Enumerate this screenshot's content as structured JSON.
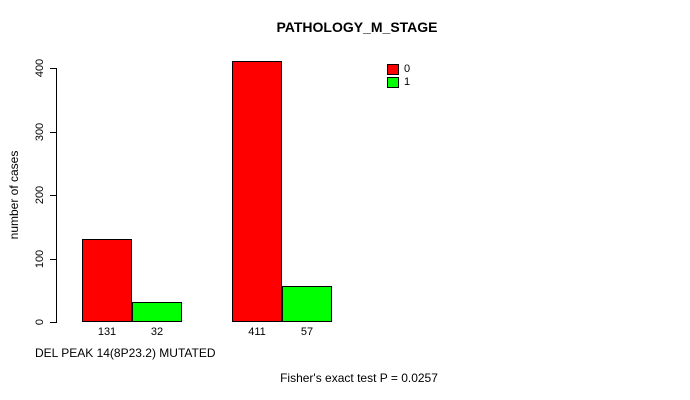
{
  "chart_data": {
    "type": "bar",
    "title": "PATHOLOGY_M_STAGE",
    "ylabel": "number of cases",
    "xlabel": "DEL PEAK 14(8P23.2) MUTATED",
    "annotation": "Fisher's exact test P = 0.0257",
    "ylim": [
      0,
      430
    ],
    "yticks": [
      0,
      100,
      200,
      300,
      400
    ],
    "grid": false,
    "legend": {
      "position": "top-right",
      "entries": [
        {
          "label": "0",
          "color": "#ff0000"
        },
        {
          "label": "1",
          "color": "#00ff00"
        }
      ]
    },
    "series": [
      {
        "name": "0",
        "color": "#ff0000",
        "values": [
          131,
          411
        ]
      },
      {
        "name": "1",
        "color": "#00ff00",
        "values": [
          32,
          57
        ]
      }
    ],
    "bar_value_labels": [
      [
        "131",
        "32"
      ],
      [
        "411",
        "57"
      ]
    ]
  }
}
